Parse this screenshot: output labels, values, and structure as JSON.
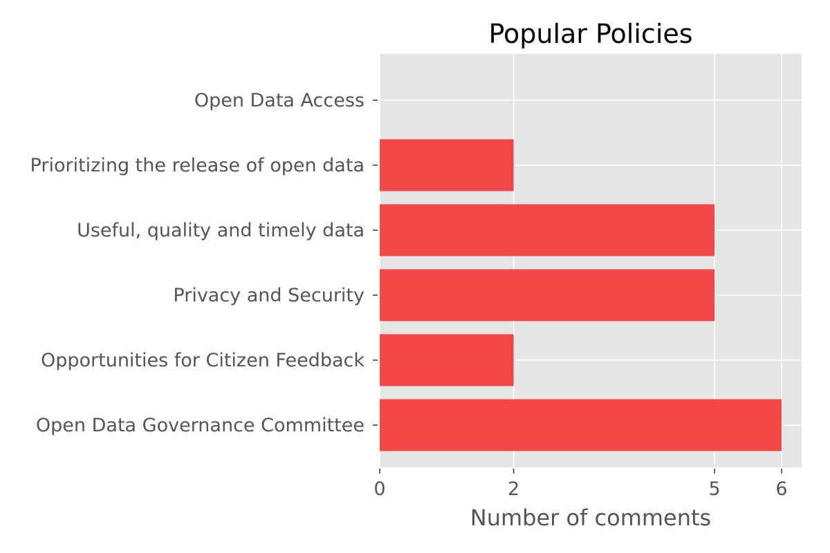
{
  "chart_data": {
    "type": "bar",
    "orientation": "horizontal",
    "title": "Popular Policies",
    "xlabel": "Number of comments",
    "ylabel": "",
    "categories": [
      "Open Data Access",
      "Prioritizing the release of open data",
      "Useful, quality and timely data",
      "Privacy and Security",
      "Opportunities for Citizen Feedback",
      "Open Data Governance Committee"
    ],
    "values": [
      0,
      2,
      5,
      5,
      2,
      6
    ],
    "xticks": [
      0,
      2,
      5,
      6
    ],
    "xlim": [
      0,
      6.3
    ],
    "grid": true,
    "legend": "none",
    "colors": {
      "bar": "#f44444",
      "plot_background": "#e5e5e5",
      "grid": "#ffffff",
      "tick_text": "#555555"
    }
  }
}
